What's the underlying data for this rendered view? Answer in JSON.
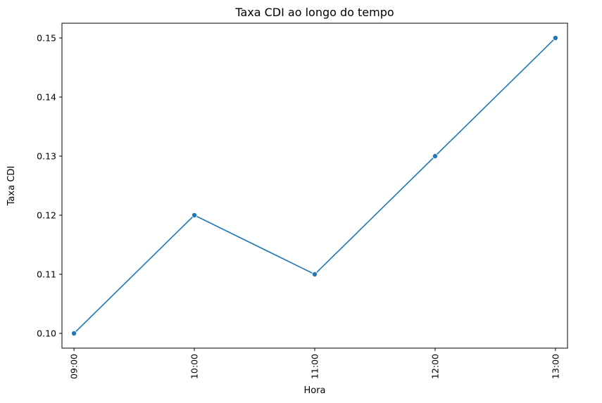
{
  "chart_data": {
    "type": "line",
    "title": "Taxa CDI ao longo do tempo",
    "xlabel": "Hora",
    "ylabel": "Taxa CDI",
    "categories": [
      "09:00",
      "10:00",
      "11:00",
      "12:00",
      "13:00"
    ],
    "series": [
      {
        "values": [
          0.1,
          0.12,
          0.11,
          0.13,
          0.15
        ],
        "color": "#1f77b4",
        "marker": "circle"
      }
    ],
    "ylim": [
      0.0975,
      0.1525
    ],
    "yticks": [
      "0.10",
      "0.11",
      "0.12",
      "0.13",
      "0.14",
      "0.15"
    ],
    "grid": false,
    "x_tick_rotation": "vertical"
  }
}
